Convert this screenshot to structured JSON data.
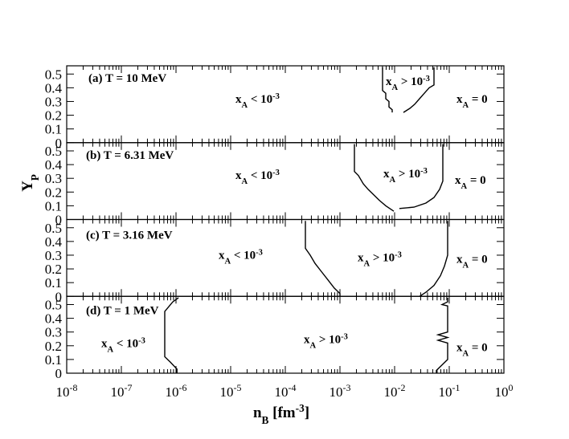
{
  "chart_data": [
    {
      "type": "line",
      "title": "(a) T = 10 MeV",
      "xscale": "log",
      "xlim": [
        1e-08,
        1
      ],
      "xticks": [
        1e-08,
        1e-07,
        1e-06,
        1e-05,
        0.0001,
        0.001,
        0.01,
        0.1,
        1
      ],
      "minor_ticks": true,
      "ylim": [
        0,
        0.56
      ],
      "yticks": [
        0,
        0.1,
        0.2,
        0.3,
        0.4,
        0.5
      ],
      "annotations": [
        [
          "x",
          "A",
          " < 10",
          "-3"
        ],
        [
          "x",
          "A",
          " > 10",
          "-3"
        ],
        [
          "x",
          "A",
          " = 0"
        ]
      ],
      "series": [
        {
          "color": "#000000",
          "x": [
            0.00601,
            0.00601,
            0.00689,
            0.00689,
            0.00789,
            0.00789,
            0.00904,
            0.00904
          ],
          "values": [
            0.55,
            0.38,
            0.36,
            0.32,
            0.3,
            0.26,
            0.24,
            0.22
          ]
        },
        {
          "color": "#000000",
          "x": [
            0.0526,
            0.0526,
            0.0429,
            0.035,
            0.0286,
            0.0233,
            0.019,
            0.0145
          ],
          "values": [
            0.55,
            0.42,
            0.4,
            0.36,
            0.32,
            0.28,
            0.25,
            0.22
          ]
        }
      ]
    },
    {
      "type": "line",
      "title": "(b) T = 6.31 MeV",
      "xscale": "log",
      "xlim": [
        1e-08,
        1
      ],
      "xticks": [
        1e-08,
        1e-07,
        1e-06,
        1e-05,
        0.0001,
        0.001,
        0.01,
        0.1,
        1
      ],
      "minor_ticks": true,
      "ylim": [
        0,
        0.56
      ],
      "yticks": [
        0,
        0.1,
        0.2,
        0.3,
        0.4,
        0.5
      ],
      "y_label": [
        "Y",
        "P"
      ],
      "annotations": [
        [
          "x",
          "A",
          " < 10",
          "-3"
        ],
        [
          "x",
          "A",
          " > 10",
          "-3"
        ],
        [
          "x",
          "A",
          " = 0"
        ]
      ],
      "series": [
        {
          "color": "#000000",
          "x": [
            0.00184,
            0.00184,
            0.00218,
            0.00267,
            0.00327,
            0.00415,
            0.00526,
            0.00689,
            0.00966
          ],
          "values": [
            0.55,
            0.35,
            0.32,
            0.26,
            0.22,
            0.18,
            0.14,
            0.1,
            0.06
          ]
        },
        {
          "color": "#000000",
          "x": [
            0.0762,
            0.0762,
            0.0667,
            0.0526,
            0.0375,
            0.0226,
            0.0122
          ],
          "values": [
            0.55,
            0.28,
            0.22,
            0.16,
            0.12,
            0.09,
            0.08
          ]
        }
      ]
    },
    {
      "type": "line",
      "title": "(c) T = 3.16 MeV",
      "xscale": "log",
      "xlim": [
        1e-08,
        1
      ],
      "xticks": [
        1e-08,
        1e-07,
        1e-06,
        1e-05,
        0.0001,
        0.001,
        0.01,
        0.1,
        1
      ],
      "minor_ticks": true,
      "ylim": [
        0,
        0.56
      ],
      "yticks": [
        0,
        0.1,
        0.2,
        0.3,
        0.4,
        0.5
      ],
      "annotations": [
        [
          "x",
          "A",
          " < 10",
          "-3"
        ],
        [
          "x",
          "A",
          " > 10",
          "-3"
        ],
        [
          "x",
          "A",
          " = 0"
        ]
      ],
      "series": [
        {
          "color": "#000000",
          "x": [
            0.000233,
            0.000233,
            0.000286,
            0.00035,
            0.000459,
            0.000601,
            0.000788,
            0.001,
            0.001
          ],
          "values": [
            0.55,
            0.35,
            0.3,
            0.24,
            0.18,
            0.12,
            0.06,
            0.02,
            0
          ]
        },
        {
          "color": "#000000",
          "x": [
            0.0935,
            0.0935,
            0.0817,
            0.0689,
            0.0526,
            0.0375,
            0.0286
          ],
          "values": [
            0.55,
            0.3,
            0.22,
            0.15,
            0.08,
            0.03,
            0
          ]
        }
      ]
    },
    {
      "type": "line",
      "title": "(d) T = 1 MeV",
      "xscale": "log",
      "xlim": [
        1e-08,
        1
      ],
      "xticks": [
        {
          "value": 1e-08,
          "label": "10",
          "exponent": "-8"
        },
        {
          "value": 1e-07,
          "label": "10",
          "exponent": "-7"
        },
        {
          "value": 1e-06,
          "label": "10",
          "exponent": "-6"
        },
        {
          "value": 1e-05,
          "label": "10",
          "exponent": "-5"
        },
        {
          "value": 0.0001,
          "label": "10",
          "exponent": "-4"
        },
        {
          "value": 0.001,
          "label": "10",
          "exponent": "-3"
        },
        {
          "value": 0.01,
          "label": "10",
          "exponent": "-2"
        },
        {
          "value": 0.1,
          "label": "10",
          "exponent": "-1"
        },
        {
          "value": 1,
          "label": "10",
          "exponent": "0"
        }
      ],
      "minor_ticks": true,
      "ylim": [
        0,
        0.56
      ],
      "yticks": [
        0,
        0.1,
        0.2,
        0.3,
        0.4,
        0.5
      ],
      "x_label": [
        "n",
        "B",
        " [fm",
        "-3",
        "]"
      ],
      "annotations": [
        [
          "x",
          "A",
          " < 10",
          "-3"
        ],
        [
          "x",
          "A",
          " > 10",
          "-3"
        ],
        [
          "x",
          "A",
          " = 0"
        ]
      ],
      "series": [
        {
          "color": "#000000",
          "x": [
            1.11e-06,
            8.73e-07,
            6.22e-07,
            6.22e-07,
            7.89e-07,
            1.04e-06,
            1.04e-06
          ],
          "values": [
            0.55,
            0.52,
            0.45,
            0.12,
            0.08,
            0.03,
            0
          ]
        },
        {
          "color": "#000000",
          "x": [
            0.0935,
            0.0935,
            0.0738,
            0.0935,
            0.0935,
            0.0622,
            0.0935,
            0.0622,
            0.0935,
            0.0935,
            0.0738,
            0.0582,
            0.0582
          ],
          "values": [
            0.55,
            0.52,
            0.5,
            0.49,
            0.3,
            0.28,
            0.26,
            0.24,
            0.22,
            0.1,
            0.06,
            0.02,
            0
          ]
        }
      ]
    }
  ]
}
